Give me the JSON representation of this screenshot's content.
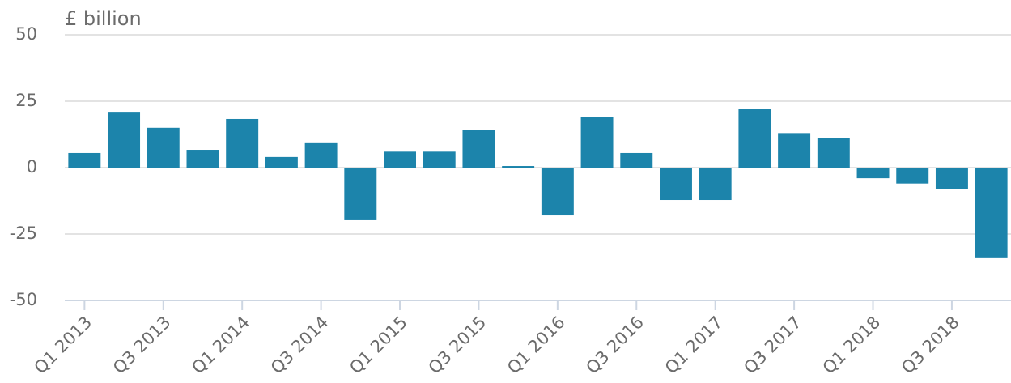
{
  "chart_data": {
    "type": "bar",
    "y_label": "£ billion",
    "categories": [
      "Q1 2013",
      null,
      "Q3 2013",
      null,
      "Q1 2014",
      null,
      "Q3 2014",
      null,
      "Q1 2015",
      null,
      "Q3 2015",
      null,
      "Q1 2016",
      null,
      "Q3 2016",
      null,
      "Q1 2017",
      null,
      "Q3 2017",
      null,
      "Q1 2018",
      null,
      "Q3 2018",
      null
    ],
    "values": [
      5.5,
      21,
      15,
      6.7,
      18.3,
      4,
      9.5,
      -19.8,
      6,
      6,
      14.3,
      0.6,
      -18,
      19,
      5.5,
      -12.2,
      -12.2,
      22,
      13,
      11,
      -4,
      -6,
      -8.2,
      -34.1
    ],
    "color": "#1c84ab",
    "ylim": [
      -50,
      50
    ],
    "yticks": [
      -50,
      -25,
      0,
      25,
      50
    ],
    "grid": true
  }
}
